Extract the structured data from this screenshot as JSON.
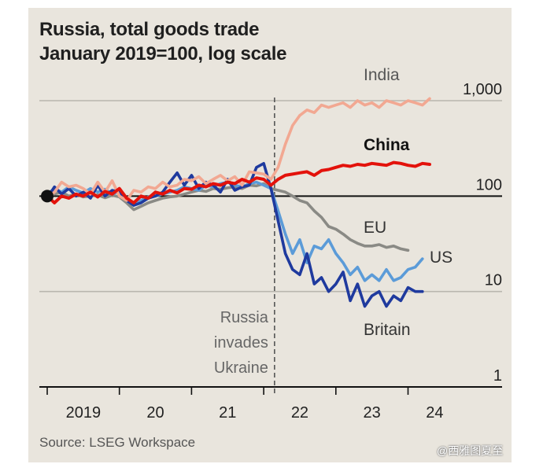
{
  "title_line1": "Russia, total goods trade",
  "title_line2": "January 2019=100, log scale",
  "source": "Source: LSEG Workspace",
  "watermark": "@西雅图夏至",
  "chart_data": {
    "type": "line",
    "title": "Russia, total goods trade",
    "subtitle": "January 2019=100, log scale",
    "y_scale": "log",
    "ylim": [
      1,
      1000
    ],
    "yticks": [
      {
        "value": 1000,
        "label": "1,000"
      },
      {
        "value": 100,
        "label": "100"
      },
      {
        "value": 10,
        "label": "10"
      },
      {
        "value": 1,
        "label": "1"
      }
    ],
    "xlim": [
      2019.0,
      2025.1
    ],
    "xticks": [
      {
        "value": 2019.5,
        "label": "2019"
      },
      {
        "value": 2020.5,
        "label": "20"
      },
      {
        "value": 2021.5,
        "label": "21"
      },
      {
        "value": 2022.5,
        "label": "22"
      },
      {
        "value": 2023.5,
        "label": "23"
      },
      {
        "value": 2024.5,
        "label": "24"
      }
    ],
    "annotation": {
      "x": 2022.15,
      "text_lines": [
        "Russia",
        "invades",
        "Ukraine"
      ]
    },
    "start_marker": {
      "x": 2019.0,
      "y": 100
    },
    "series": [
      {
        "name": "India",
        "color": "#f2a892",
        "x": [
          2019.0,
          2019.1,
          2019.2,
          2019.3,
          2019.4,
          2019.5,
          2019.6,
          2019.7,
          2019.8,
          2019.9,
          2020.0,
          2020.1,
          2020.2,
          2020.3,
          2020.4,
          2020.5,
          2020.6,
          2020.7,
          2020.8,
          2020.9,
          2021.0,
          2021.1,
          2021.2,
          2021.3,
          2021.4,
          2021.5,
          2021.6,
          2021.7,
          2021.8,
          2021.9,
          2022.0,
          2022.1,
          2022.2,
          2022.3,
          2022.4,
          2022.5,
          2022.6,
          2022.7,
          2022.8,
          2022.9,
          2023.0,
          2023.1,
          2023.2,
          2023.3,
          2023.4,
          2023.5,
          2023.6,
          2023.7,
          2023.8,
          2023.9,
          2024.0,
          2024.1,
          2024.2,
          2024.3
        ],
        "y": [
          95,
          110,
          140,
          125,
          130,
          120,
          105,
          140,
          110,
          145,
          100,
          90,
          115,
          110,
          125,
          120,
          140,
          125,
          130,
          150,
          145,
          160,
          135,
          150,
          165,
          145,
          160,
          130,
          180,
          175,
          170,
          150,
          200,
          350,
          550,
          700,
          800,
          750,
          900,
          850,
          900,
          950,
          850,
          1000,
          900,
          950,
          850,
          1000,
          950,
          900,
          1000,
          950,
          900,
          1050
        ]
      },
      {
        "name": "China",
        "color": "#e3120b",
        "x": [
          2019.0,
          2019.1,
          2019.2,
          2019.3,
          2019.4,
          2019.5,
          2019.6,
          2019.7,
          2019.8,
          2019.9,
          2020.0,
          2020.1,
          2020.2,
          2020.3,
          2020.4,
          2020.5,
          2020.6,
          2020.7,
          2020.8,
          2020.9,
          2021.0,
          2021.1,
          2021.2,
          2021.3,
          2021.4,
          2021.5,
          2021.6,
          2021.7,
          2021.8,
          2021.9,
          2022.0,
          2022.1,
          2022.2,
          2022.3,
          2022.4,
          2022.5,
          2022.6,
          2022.7,
          2022.8,
          2022.9,
          2023.0,
          2023.1,
          2023.2,
          2023.3,
          2023.4,
          2023.5,
          2023.6,
          2023.7,
          2023.8,
          2023.9,
          2024.0,
          2024.1,
          2024.2,
          2024.3
        ],
        "y": [
          100,
          85,
          100,
          95,
          105,
          100,
          110,
          98,
          112,
          105,
          120,
          95,
          85,
          100,
          95,
          110,
          105,
          115,
          108,
          120,
          118,
          130,
          125,
          135,
          130,
          140,
          135,
          150,
          140,
          155,
          150,
          130,
          150,
          165,
          170,
          175,
          180,
          165,
          185,
          190,
          200,
          210,
          205,
          215,
          210,
          220,
          215,
          210,
          225,
          220,
          210,
          205,
          220,
          215
        ]
      },
      {
        "name": "EU",
        "color": "#8a8a85",
        "x": [
          2019.0,
          2019.1,
          2019.2,
          2019.3,
          2019.4,
          2019.5,
          2019.6,
          2019.7,
          2019.8,
          2019.9,
          2020.0,
          2020.1,
          2020.2,
          2020.3,
          2020.4,
          2020.5,
          2020.6,
          2020.7,
          2020.8,
          2020.9,
          2021.0,
          2021.1,
          2021.2,
          2021.3,
          2021.4,
          2021.5,
          2021.6,
          2021.7,
          2021.8,
          2021.9,
          2022.0,
          2022.1,
          2022.2,
          2022.3,
          2022.4,
          2022.5,
          2022.6,
          2022.7,
          2022.8,
          2022.9,
          2023.0,
          2023.1,
          2023.2,
          2023.3,
          2023.4,
          2023.5,
          2023.6,
          2023.7,
          2023.8,
          2023.9,
          2024.0
        ],
        "y": [
          100,
          105,
          110,
          100,
          105,
          98,
          100,
          103,
          96,
          102,
          98,
          85,
          72,
          78,
          85,
          90,
          95,
          98,
          100,
          105,
          110,
          115,
          112,
          120,
          118,
          122,
          125,
          120,
          130,
          128,
          135,
          120,
          115,
          110,
          100,
          90,
          85,
          70,
          60,
          48,
          45,
          40,
          35,
          32,
          30,
          30,
          31,
          29,
          30,
          28,
          27
        ]
      },
      {
        "name": "US",
        "color": "#5b9bd8",
        "x": [
          2019.0,
          2019.1,
          2019.2,
          2019.3,
          2019.4,
          2019.5,
          2019.6,
          2019.7,
          2019.8,
          2019.9,
          2020.0,
          2020.1,
          2020.2,
          2020.3,
          2020.4,
          2020.5,
          2020.6,
          2020.7,
          2020.8,
          2020.9,
          2021.0,
          2021.1,
          2021.2,
          2021.3,
          2021.4,
          2021.5,
          2021.6,
          2021.7,
          2021.8,
          2021.9,
          2022.0,
          2022.1,
          2022.2,
          2022.3,
          2022.4,
          2022.5,
          2022.6,
          2022.7,
          2022.8,
          2022.9,
          2023.0,
          2023.1,
          2023.2,
          2023.3,
          2023.4,
          2023.5,
          2023.6,
          2023.7,
          2023.8,
          2023.9,
          2024.0,
          2024.1,
          2024.2
        ],
        "y": [
          105,
          120,
          110,
          125,
          115,
          108,
          120,
          110,
          118,
          105,
          112,
          95,
          80,
          90,
          98,
          100,
          105,
          110,
          115,
          125,
          120,
          115,
          130,
          125,
          135,
          140,
          130,
          125,
          135,
          140,
          130,
          120,
          70,
          40,
          25,
          35,
          20,
          30,
          28,
          35,
          25,
          20,
          15,
          18,
          13,
          15,
          13,
          17,
          13,
          14,
          17,
          18,
          22
        ]
      },
      {
        "name": "Britain",
        "color": "#1f3a9e",
        "x": [
          2019.0,
          2019.1,
          2019.2,
          2019.3,
          2019.4,
          2019.5,
          2019.6,
          2019.7,
          2019.8,
          2019.9,
          2020.0,
          2020.1,
          2020.2,
          2020.3,
          2020.4,
          2020.5,
          2020.6,
          2020.7,
          2020.8,
          2020.9,
          2021.0,
          2021.1,
          2021.2,
          2021.3,
          2021.4,
          2021.5,
          2021.6,
          2021.7,
          2021.8,
          2021.9,
          2022.0,
          2022.1,
          2022.2,
          2022.3,
          2022.4,
          2022.5,
          2022.6,
          2022.7,
          2022.8,
          2022.9,
          2023.0,
          2023.1,
          2023.2,
          2023.3,
          2023.4,
          2023.5,
          2023.6,
          2023.7,
          2023.8,
          2023.9,
          2024.0,
          2024.1,
          2024.2
        ],
        "y": [
          95,
          125,
          105,
          120,
          100,
          110,
          95,
          130,
          100,
          115,
          110,
          90,
          80,
          85,
          95,
          100,
          110,
          140,
          175,
          130,
          165,
          120,
          140,
          130,
          110,
          150,
          115,
          125,
          130,
          200,
          220,
          120,
          55,
          25,
          17,
          15,
          25,
          12,
          14,
          10,
          12,
          16,
          8,
          12,
          7,
          9,
          10,
          7,
          9,
          8,
          11,
          10,
          10
        ]
      }
    ]
  }
}
